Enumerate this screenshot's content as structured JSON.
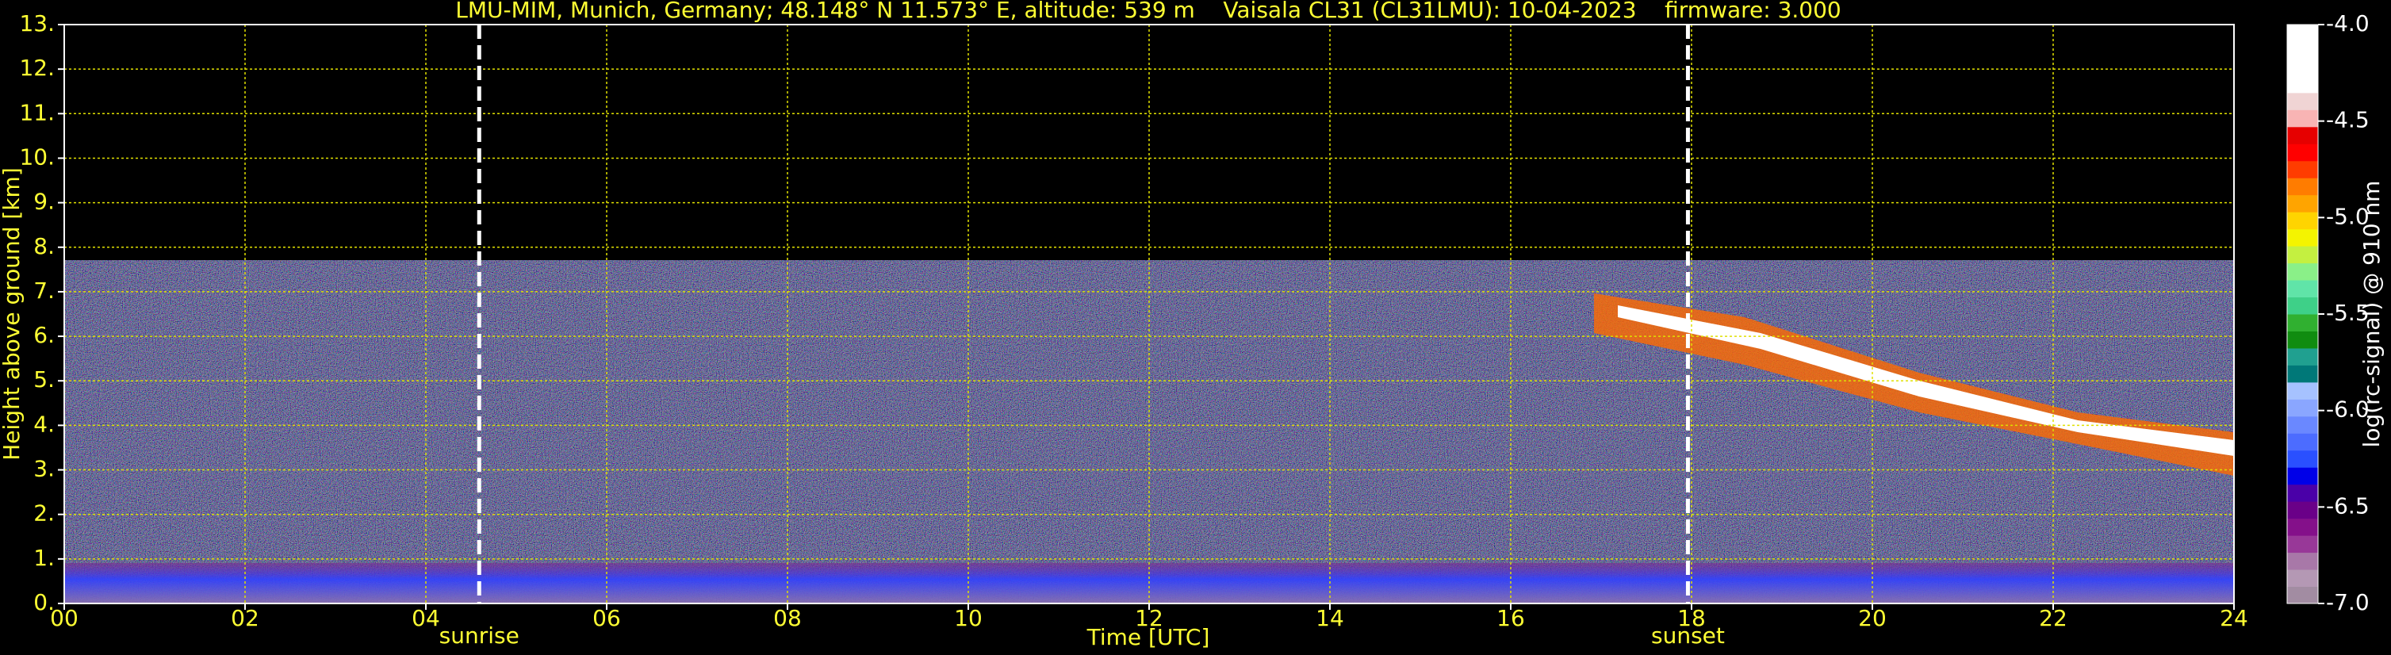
{
  "chart_data": {
    "type": "heatmap",
    "title": "LMU-MIM, Munich, Germany; 48.148° N 11.573° E, altitude: 539 m    Vaisala CL31 (CL31LMU): 10-04-2023    firmware: 3.000",
    "xlabel": "Time [UTC]",
    "ylabel": "Height above ground [km]",
    "xlim": [
      0,
      24
    ],
    "xticks": [
      {
        "value": 0,
        "label": "00"
      },
      {
        "value": 2,
        "label": "02"
      },
      {
        "value": 4,
        "label": "04"
      },
      {
        "value": 6,
        "label": "06"
      },
      {
        "value": 8,
        "label": "08"
      },
      {
        "value": 10,
        "label": "10"
      },
      {
        "value": 12,
        "label": "12"
      },
      {
        "value": 14,
        "label": "14"
      },
      {
        "value": 16,
        "label": "16"
      },
      {
        "value": 18,
        "label": "18"
      },
      {
        "value": 20,
        "label": "20"
      },
      {
        "value": 22,
        "label": "22"
      },
      {
        "value": 24,
        "label": "24"
      }
    ],
    "ylim": [
      0,
      13
    ],
    "yticks": [
      {
        "value": 0,
        "label": "0."
      },
      {
        "value": 1,
        "label": "1."
      },
      {
        "value": 2,
        "label": "2."
      },
      {
        "value": 3,
        "label": "3."
      },
      {
        "value": 4,
        "label": "4."
      },
      {
        "value": 5,
        "label": "5."
      },
      {
        "value": 6,
        "label": "6."
      },
      {
        "value": 7,
        "label": "7."
      },
      {
        "value": 8,
        "label": "8."
      },
      {
        "value": 9,
        "label": "9."
      },
      {
        "value": 10,
        "label": "10."
      },
      {
        "value": 11,
        "label": "11."
      },
      {
        "value": 12,
        "label": "12."
      },
      {
        "value": 13,
        "label": "13."
      }
    ],
    "grid": true,
    "annotations": [
      {
        "label": "sunrise",
        "x": 4.59
      },
      {
        "label": "sunset",
        "x": 17.96
      }
    ],
    "colorbar": {
      "label": "log(rc-signal) @ 910 nm",
      "zlim": [
        -7,
        -4
      ],
      "ticks": [
        {
          "value": -4,
          "label": "-4.0"
        },
        {
          "value": -4.5,
          "label": "-4.5"
        },
        {
          "value": -5,
          "label": "-5.0"
        },
        {
          "value": -5.5,
          "label": "-5.5"
        },
        {
          "value": -6,
          "label": "-6.0"
        },
        {
          "value": -6.5,
          "label": "-6.5"
        },
        {
          "value": -7,
          "label": "-7.0"
        }
      ],
      "colors": [
        "#a28ca2",
        "#b498b4",
        "#a878a8",
        "#983898",
        "#84108a",
        "#6a0088",
        "#4a00a8",
        "#0000e8",
        "#2a50ff",
        "#4c6cff",
        "#6a88ff",
        "#8aa6ff",
        "#a6c2ff",
        "#007878",
        "#20a090",
        "#108c10",
        "#30b030",
        "#3ed088",
        "#60e4a8",
        "#8af088",
        "#c4f040",
        "#f4f400",
        "#ffd400",
        "#ffa400",
        "#ff7c00",
        "#ff3c00",
        "#ff0000",
        "#e60000",
        "#f8b4b4",
        "#f0d4d4",
        "#ffffff",
        "#ffffff",
        "#ffffff",
        "#ffffff"
      ]
    }
  }
}
